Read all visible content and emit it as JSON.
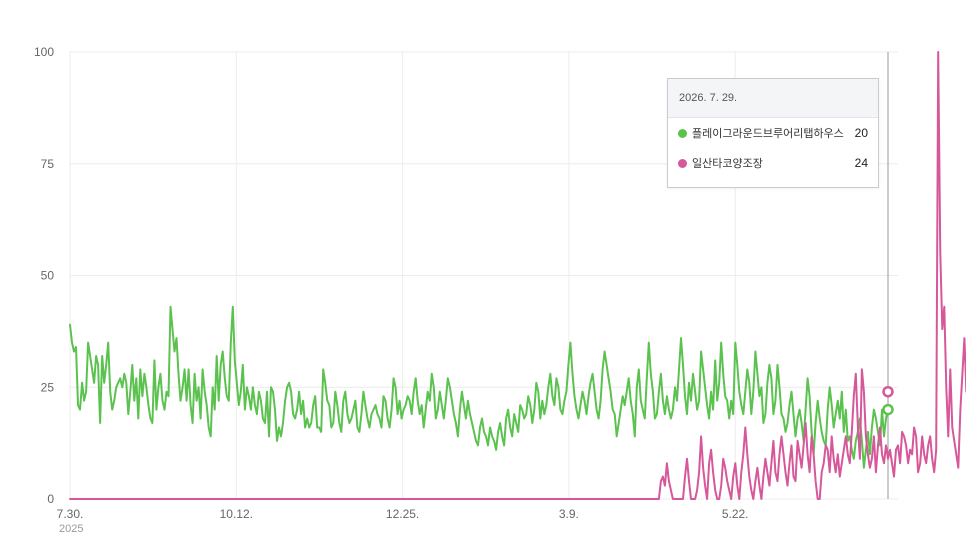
{
  "chart_data": {
    "type": "line",
    "title": "",
    "xlabel": "",
    "ylabel": "",
    "ylim": [
      0,
      100
    ],
    "y_ticks": [
      "100",
      "75",
      "50",
      "25",
      "0"
    ],
    "x_tick_labels": [
      "7.30.",
      "10.12.",
      "12.25.",
      "3.9.",
      "5.22."
    ],
    "x_year_label": "2025",
    "x_range": [
      "2025-07-30",
      "2026-07-29"
    ],
    "grid": true,
    "series": [
      {
        "name": "플레이그라운드브루어리탭하우스",
        "color": "#5cc24f",
        "values": [
          39,
          35,
          33,
          34,
          21,
          20,
          26,
          22,
          24,
          35,
          32,
          29,
          26,
          32,
          30,
          17,
          32,
          26,
          30,
          35,
          24,
          20,
          22,
          25,
          26,
          27,
          25,
          28,
          26,
          19,
          24,
          30,
          22,
          27,
          18,
          29,
          23,
          28,
          25,
          21,
          18,
          17,
          31,
          20,
          25,
          28,
          22,
          20,
          24,
          23,
          43,
          38,
          33,
          36,
          28,
          22,
          25,
          29,
          22,
          29,
          21,
          17,
          28,
          22,
          25,
          18,
          29,
          24,
          21,
          16,
          14,
          25,
          20,
          32,
          22,
          30,
          33,
          27,
          23,
          22,
          35,
          43,
          31,
          26,
          21,
          24,
          30,
          20,
          25,
          23,
          20,
          25,
          21,
          19,
          24,
          22,
          18,
          17,
          24,
          14,
          25,
          24,
          20,
          13,
          16,
          14,
          17,
          22,
          25,
          26,
          24,
          19,
          18,
          20,
          24,
          19,
          22,
          16,
          18,
          16,
          17,
          21,
          23,
          16,
          16,
          15,
          29,
          26,
          22,
          21,
          16,
          17,
          24,
          21,
          17,
          15,
          22,
          24,
          19,
          17,
          18,
          20,
          22,
          16,
          15,
          19,
          24,
          21,
          18,
          16,
          19,
          20,
          21,
          19,
          18,
          16,
          23,
          22,
          18,
          16,
          20,
          27,
          25,
          19,
          22,
          18,
          20,
          21,
          23,
          22,
          19,
          24,
          27,
          22,
          19,
          21,
          16,
          20,
          24,
          22,
          28,
          25,
          18,
          20,
          24,
          21,
          18,
          22,
          27,
          25,
          22,
          19,
          17,
          14,
          20,
          24,
          21,
          18,
          22,
          19,
          17,
          15,
          13,
          12,
          16,
          18,
          15,
          14,
          12,
          16,
          14,
          13,
          11,
          15,
          17,
          14,
          12,
          18,
          20,
          16,
          14,
          19,
          17,
          15,
          21,
          20,
          18,
          19,
          23,
          21,
          17,
          20,
          26,
          24,
          18,
          22,
          19,
          21,
          25,
          28,
          23,
          21,
          27,
          25,
          20,
          19,
          22,
          24,
          30,
          35,
          28,
          23,
          20,
          18,
          21,
          24,
          22,
          19,
          23,
          26,
          28,
          24,
          20,
          18,
          22,
          29,
          33,
          30,
          27,
          24,
          20,
          19,
          14,
          17,
          20,
          23,
          21,
          24,
          27,
          22,
          19,
          14,
          25,
          29,
          22,
          20,
          18,
          27,
          35,
          28,
          24,
          18,
          19,
          24,
          28,
          22,
          19,
          23,
          20,
          18,
          20,
          25,
          22,
          29,
          36,
          30,
          23,
          19,
          26,
          22,
          28,
          24,
          20,
          22,
          33,
          29,
          25,
          21,
          18,
          24,
          20,
          31,
          22,
          26,
          35,
          28,
          23,
          22,
          18,
          22,
          19,
          35,
          30,
          24,
          21,
          19,
          24,
          29,
          26,
          19,
          24,
          33,
          28,
          23,
          25,
          17,
          19,
          26,
          30,
          27,
          19,
          22,
          30,
          25,
          19,
          18,
          15,
          17,
          21,
          24,
          19,
          14,
          18,
          20,
          17,
          13,
          20,
          27,
          23,
          15,
          10,
          17,
          22,
          18,
          15,
          13,
          12,
          20,
          25,
          21,
          16,
          19,
          22,
          18,
          24,
          15,
          20,
          13,
          14,
          11,
          9,
          13,
          15,
          18,
          13,
          7,
          11,
          15,
          10,
          16,
          20,
          18,
          15,
          12,
          20,
          14,
          18,
          20
        ],
        "tooltip_value": "20"
      },
      {
        "name": "일산타코양조장",
        "color": "#d6589a",
        "values": [
          0,
          0,
          0,
          0,
          0,
          0,
          0,
          0,
          0,
          0,
          0,
          0,
          0,
          0,
          0,
          0,
          0,
          0,
          0,
          0,
          0,
          0,
          0,
          0,
          0,
          0,
          0,
          0,
          0,
          0,
          0,
          0,
          0,
          0,
          0,
          0,
          0,
          0,
          0,
          0,
          0,
          0,
          0,
          0,
          0,
          0,
          0,
          0,
          0,
          0,
          0,
          0,
          0,
          0,
          0,
          0,
          0,
          0,
          0,
          0,
          0,
          0,
          0,
          0,
          0,
          0,
          0,
          0,
          0,
          0,
          0,
          0,
          0,
          0,
          0,
          0,
          0,
          0,
          0,
          0,
          0,
          0,
          0,
          0,
          0,
          0,
          0,
          0,
          0,
          0,
          0,
          0,
          0,
          0,
          0,
          0,
          0,
          0,
          0,
          0,
          0,
          0,
          0,
          0,
          0,
          0,
          0,
          0,
          0,
          0,
          0,
          0,
          0,
          0,
          0,
          0,
          0,
          0,
          0,
          0,
          0,
          0,
          0,
          0,
          0,
          0,
          0,
          0,
          0,
          0,
          0,
          0,
          0,
          0,
          0,
          0,
          0,
          0,
          0,
          0,
          0,
          0,
          0,
          0,
          0,
          0,
          0,
          0,
          0,
          0,
          0,
          0,
          0,
          0,
          0,
          0,
          0,
          0,
          0,
          0,
          0,
          0,
          0,
          0,
          0,
          0,
          0,
          0,
          0,
          0,
          0,
          0,
          0,
          0,
          0,
          0,
          0,
          0,
          0,
          0,
          0,
          0,
          0,
          0,
          0,
          0,
          0,
          0,
          0,
          0,
          0,
          0,
          0,
          0,
          0,
          0,
          0,
          0,
          0,
          0,
          0,
          0,
          0,
          0,
          0,
          0,
          0,
          0,
          0,
          0,
          0,
          0,
          0,
          0,
          0,
          0,
          0,
          0,
          0,
          0,
          0,
          0,
          0,
          0,
          0,
          0,
          0,
          0,
          0,
          0,
          0,
          0,
          0,
          0,
          0,
          0,
          0,
          0,
          0,
          0,
          0,
          0,
          0,
          0,
          0,
          0,
          0,
          0,
          0,
          0,
          0,
          0,
          0,
          0,
          0,
          0,
          0,
          0,
          0,
          0,
          0,
          0,
          0,
          0,
          0,
          0,
          0,
          0,
          0,
          0,
          0,
          0,
          0,
          0,
          0,
          0,
          0,
          0,
          0,
          0,
          0,
          0,
          0,
          0,
          0,
          0,
          0,
          0,
          0,
          0,
          0,
          0,
          0,
          0,
          4,
          5,
          3,
          8,
          4,
          2,
          0,
          0,
          0,
          0,
          0,
          0,
          5,
          9,
          4,
          0,
          0,
          0,
          2,
          6,
          14,
          7,
          3,
          0,
          8,
          11,
          6,
          2,
          0,
          0,
          3,
          9,
          7,
          4,
          2,
          0,
          5,
          8,
          3,
          0,
          6,
          10,
          16,
          10,
          5,
          2,
          0,
          4,
          7,
          3,
          0,
          5,
          9,
          6,
          3,
          8,
          13,
          6,
          4,
          10,
          14,
          10,
          6,
          3,
          8,
          12,
          5,
          4,
          13,
          10,
          7,
          12,
          17,
          10,
          6,
          14,
          10,
          4,
          0,
          0,
          6,
          8,
          12,
          11,
          6,
          14,
          9,
          6,
          10,
          5,
          8,
          11,
          14,
          10,
          8,
          15,
          23,
          28,
          16,
          9,
          29,
          24,
          14,
          10,
          7,
          9,
          14,
          6,
          12,
          16,
          10,
          8,
          12,
          9,
          11,
          8,
          5,
          11,
          12,
          8,
          15,
          14,
          12,
          8,
          11,
          10,
          16,
          14,
          6,
          8,
          14,
          10,
          8,
          12,
          14,
          9,
          6,
          11,
          100,
          55,
          38,
          43,
          25,
          14,
          29,
          16,
          13,
          10,
          7,
          20,
          28,
          36,
          24
        ],
        "tooltip_value": "24"
      }
    ]
  },
  "tooltip": {
    "date": "2026. 7. 29."
  }
}
